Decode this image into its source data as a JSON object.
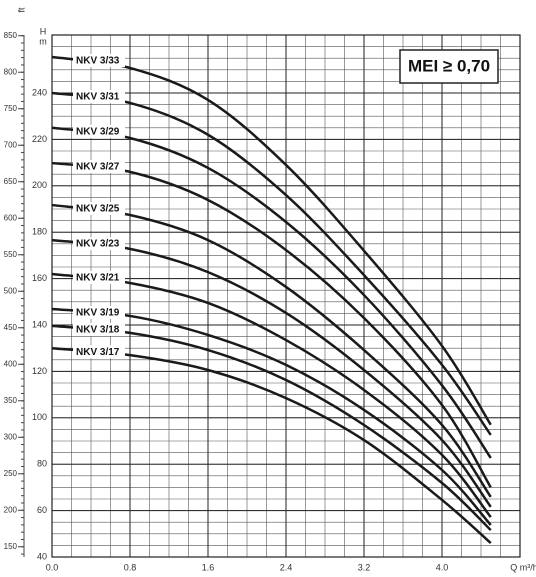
{
  "chart_data": {
    "type": "line",
    "annotation": "MEI ≥ 0,70",
    "x_label": "Q m³/h",
    "y_label": "H",
    "y_unit": "m",
    "y2_label": "ft",
    "xlim": [
      0,
      4.8
    ],
    "xticks": [
      {
        "value": 0,
        "label": "0.0"
      },
      0.8,
      1.6,
      2.4,
      3.2,
      {
        "value": 4,
        "label": "4.0"
      }
    ],
    "ylim": [
      40,
      265
    ],
    "yticks": [
      40,
      60,
      80,
      100,
      120,
      140,
      160,
      180,
      200,
      220,
      240
    ],
    "y2lim": [
      136,
      851
    ],
    "y2ticks": [
      150,
      200,
      250,
      300,
      350,
      400,
      450,
      500,
      550,
      600,
      650,
      700,
      750,
      800,
      850
    ],
    "grid": true,
    "x": [
      0,
      0.8,
      1.6,
      2.4,
      3.2,
      4.0,
      4.5
    ],
    "series": [
      {
        "name": "NKV 3/33",
        "color": "#1a1a1a",
        "values": [
          255.5,
          250.8,
          237,
          209,
          172,
          131,
          97
        ]
      },
      {
        "name": "NKV 3/31",
        "color": "#1a1a1a",
        "values": [
          240,
          235.7,
          222,
          196,
          161.5,
          122.8,
          92.6
        ]
      },
      {
        "name": "NKV 3/29",
        "color": "#1a1a1a",
        "values": [
          225,
          220.6,
          207.7,
          184.4,
          152.9,
          114,
          82.7
        ]
      },
      {
        "name": "NKV 3/27",
        "color": "#1a1a1a",
        "values": [
          209.8,
          206,
          193.9,
          172.3,
          143,
          105.5,
          70
        ]
      },
      {
        "name": "NKV 3/25",
        "color": "#1a1a1a",
        "values": [
          191.7,
          187.4,
          176.6,
          156.4,
          129.2,
          96.9,
          65.9
        ]
      },
      {
        "name": "NKV 3/23",
        "color": "#1a1a1a",
        "values": [
          176.6,
          172.8,
          162.8,
          145.2,
          120.6,
          90.4,
          61.6
        ]
      },
      {
        "name": "NKV 3/21",
        "color": "#1a1a1a",
        "values": [
          162,
          158.1,
          149.5,
          133.5,
          112,
          84,
          57.2
        ]
      },
      {
        "name": "NKV 3/19",
        "color": "#1a1a1a",
        "values": [
          146.9,
          143.9,
          135.7,
          122.8,
          103.4,
          77.5,
          53.8
        ]
      },
      {
        "name": "NKV 3/18",
        "color": "#1a1a1a",
        "values": [
          139.6,
          136.6,
          129.2,
          116.3,
          96.9,
          71.9,
          51.6
        ]
      },
      {
        "name": "NKV 3/17",
        "color": "#1a1a1a",
        "values": [
          130,
          127,
          120.6,
          108.5,
          90.4,
          64.6,
          46
        ]
      }
    ]
  }
}
